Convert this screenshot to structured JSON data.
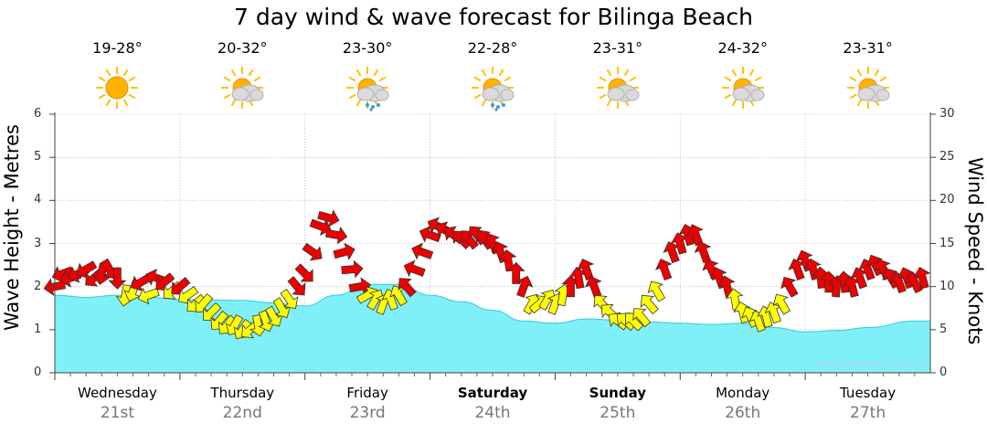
{
  "title": "7 day wind & wave forecast for Bilinga Beach",
  "y_left_label": "Wave Height - Metres",
  "y_right_label": "Wind Speed - Knots",
  "credit": "www.seabreeze.com.au",
  "days": [
    {
      "name": "Wednesday",
      "date": "21st",
      "temp": "19-28°",
      "icon": "sun-icon",
      "bold": false
    },
    {
      "name": "Thursday",
      "date": "22nd",
      "temp": "20-32°",
      "icon": "partly-cloudy-icon",
      "bold": false
    },
    {
      "name": "Friday",
      "date": "23rd",
      "temp": "23-30°",
      "icon": "sun-cloud-rain-icon",
      "bold": false
    },
    {
      "name": "Saturday",
      "date": "24th",
      "temp": "22-28°",
      "icon": "sun-cloud-rain-icon",
      "bold": true
    },
    {
      "name": "Sunday",
      "date": "25th",
      "temp": "23-31°",
      "icon": "partly-cloudy-icon",
      "bold": true
    },
    {
      "name": "Monday",
      "date": "26th",
      "temp": "24-32°",
      "icon": "partly-cloudy-icon",
      "bold": false
    },
    {
      "name": "Tuesday",
      "date": "27th",
      "temp": "23-31°",
      "icon": "partly-cloudy-icon",
      "bold": false
    }
  ],
  "colors": {
    "wave_fill": "#7ff0f8",
    "wave_line": "#33c8e0",
    "wind_strong": "#ee0000",
    "wind_light": "#ffff00"
  },
  "chart_data": {
    "type": "area",
    "grid": true,
    "x_unit": "hours from start of Wednesday 21st",
    "xlim": [
      0,
      168
    ],
    "left_axis": {
      "label": "Wave Height - Metres",
      "ylim": [
        0,
        6
      ],
      "ticks": [
        0,
        1,
        2,
        3,
        4,
        5,
        6
      ]
    },
    "right_axis": {
      "label": "Wind Speed - Knots",
      "ylim": [
        0,
        30
      ],
      "ticks": [
        0,
        5,
        10,
        15,
        20,
        25,
        30
      ]
    },
    "wave_height": [
      [
        -3,
        1.8
      ],
      [
        6,
        1.75
      ],
      [
        12,
        1.8
      ],
      [
        18,
        1.75
      ],
      [
        24,
        1.7
      ],
      [
        36,
        1.68
      ],
      [
        42,
        1.62
      ],
      [
        48,
        1.55
      ],
      [
        54,
        1.8
      ],
      [
        60,
        2.05
      ],
      [
        66,
        2.05
      ],
      [
        72,
        1.8
      ],
      [
        78,
        1.65
      ],
      [
        84,
        1.45
      ],
      [
        90,
        1.2
      ],
      [
        96,
        1.15
      ],
      [
        102,
        1.25
      ],
      [
        108,
        1.22
      ],
      [
        114,
        1.18
      ],
      [
        120,
        1.15
      ],
      [
        126,
        1.12
      ],
      [
        132,
        1.15
      ],
      [
        138,
        1.05
      ],
      [
        144,
        0.95
      ],
      [
        150,
        0.98
      ],
      [
        156,
        1.05
      ],
      [
        165,
        1.2
      ]
    ],
    "wind": {
      "units": "knots",
      "arrow_rule": "red = 10 knots or more, yellow = under 10 knots; arrow points in wind travel direction",
      "series": [
        {
          "name": "Wednesday 21st",
          "points": [
            [
              0,
              10.0,
              170
            ],
            [
              1.5,
              11.5,
              160
            ],
            [
              3,
              11.0,
              160
            ],
            [
              4.5,
              11.5,
              155
            ],
            [
              6,
              12.0,
              150
            ],
            [
              7.5,
              11.0,
              140
            ],
            [
              9,
              11.5,
              100
            ],
            [
              10.5,
              12.0,
              60
            ],
            [
              12,
              11.0,
              90
            ],
            [
              13.5,
              9.0,
              100
            ],
            [
              15,
              9.5,
              110
            ],
            [
              16.5,
              10.5,
              150
            ],
            [
              18,
              9.0,
              160
            ],
            [
              19.5,
              11.0,
              200
            ],
            [
              21,
              10.5,
              140
            ],
            [
              22.5,
              9.5,
              140
            ],
            [
              24,
              10.0,
              140
            ]
          ]
        },
        {
          "name": "Wednesday 21st night",
          "points": [
            [
              25.5,
              9.0,
              145
            ],
            [
              27,
              8.0,
              140
            ],
            [
              28.5,
              8.0,
              130
            ],
            [
              30,
              7.0,
              135
            ],
            [
              31.5,
              6.0,
              130
            ],
            [
              33,
              5.5,
              130
            ],
            [
              34.5,
              5.5,
              120
            ],
            [
              36,
              5.0,
              125
            ],
            [
              37.5,
              5.0,
              140
            ],
            [
              39,
              5.5,
              80
            ],
            [
              40.5,
              6.0,
              70
            ],
            [
              42,
              6.5,
              60
            ],
            [
              43.5,
              7.5,
              60
            ],
            [
              45,
              8.5,
              55
            ],
            [
              46.5,
              10.0,
              50
            ],
            [
              48,
              11.5,
              45
            ],
            [
              49.5,
              14.0,
              35
            ],
            [
              51,
              17.0,
              20
            ],
            [
              52.5,
              18.0,
              15
            ],
            [
              54,
              16.0,
              10
            ],
            [
              55.5,
              14.0,
              345
            ],
            [
              57,
              12.0,
              355
            ],
            [
              58.5,
              10.0,
              350
            ],
            [
              60,
              9.0,
              330
            ],
            [
              61.5,
              8.5,
              300
            ],
            [
              63,
              8.0,
              290
            ],
            [
              64.5,
              8.5,
              250
            ],
            [
              66,
              9.0,
              240
            ],
            [
              67.5,
              10.0,
              230
            ],
            [
              69,
              12.0,
              200
            ],
            [
              70.5,
              14.0,
              200
            ],
            [
              72,
              16.0,
              200
            ],
            [
              73.5,
              17.0,
              205
            ],
            [
              75,
              16.5,
              210
            ],
            [
              76.5,
              16.0,
              215
            ],
            [
              78,
              15.5,
              225
            ],
            [
              79.5,
              15.5,
              230
            ],
            [
              81,
              16.0,
              230
            ],
            [
              82.5,
              15.5,
              235
            ],
            [
              84,
              15.0,
              245
            ],
            [
              85.5,
              14.0,
              250
            ],
            [
              87,
              13.0,
              260
            ],
            [
              88.5,
              11.5,
              270
            ],
            [
              90,
              10.0,
              290
            ],
            [
              91.5,
              8.0,
              300
            ],
            [
              93,
              8.0,
              320
            ],
            [
              94.5,
              8.5,
              300
            ],
            [
              96,
              8.0,
              290
            ],
            [
              97.5,
              9.0,
              280
            ],
            [
              99,
              10.0,
              270
            ],
            [
              100.5,
              11.0,
              260
            ],
            [
              102,
              12.0,
              250
            ],
            [
              103.5,
              10.0,
              250
            ],
            [
              105,
              8.0,
              230
            ],
            [
              106.5,
              7.0,
              220
            ],
            [
              108,
              6.0,
              215
            ],
            [
              109.5,
              6.0,
              220
            ],
            [
              111,
              6.0,
              225
            ],
            [
              112.5,
              6.5,
              230
            ],
            [
              114,
              8.0,
              230
            ],
            [
              115.5,
              9.5,
              240
            ],
            [
              117,
              12.0,
              250
            ],
            [
              118.5,
              14.0,
              250
            ],
            [
              120,
              15.0,
              255
            ],
            [
              121.5,
              16.0,
              255
            ],
            [
              123,
              16.0,
              250
            ],
            [
              124.5,
              14.0,
              250
            ],
            [
              126,
              12.0,
              245
            ],
            [
              127.5,
              11.0,
              250
            ],
            [
              129,
              10.0,
              255
            ]
          ]
        },
        {
          "name": "Sunday 25th evening",
          "points": [
            [
              130.5,
              8.5,
              260
            ],
            [
              132,
              7.0,
              255
            ],
            [
              133.5,
              6.5,
              245
            ],
            [
              135,
              6.0,
              250
            ],
            [
              136.5,
              6.5,
              255
            ],
            [
              138,
              7.0,
              250
            ],
            [
              139.5,
              8.0,
              240
            ],
            [
              141,
              10.0,
              240
            ],
            [
              142.5,
              12.0,
              250
            ],
            [
              144,
              13.0,
              250
            ],
            [
              145.5,
              12.0,
              255
            ],
            [
              147,
              11.0,
              265
            ],
            [
              148.5,
              10.5,
              270
            ],
            [
              150,
              10.0,
              275
            ],
            [
              151.5,
              10.5,
              265
            ],
            [
              153,
              10.0,
              255
            ],
            [
              154.5,
              11.0,
              250
            ],
            [
              156,
              12.0,
              250
            ],
            [
              157.5,
              12.5,
              245
            ],
            [
              159,
              12.0,
              245
            ],
            [
              160.5,
              11.0,
              240
            ],
            [
              162,
              10.5,
              250
            ],
            [
              163.5,
              11.0,
              250
            ],
            [
              165,
              10.5,
              245
            ],
            [
              166.5,
              11.0,
              255
            ]
          ]
        }
      ]
    }
  }
}
